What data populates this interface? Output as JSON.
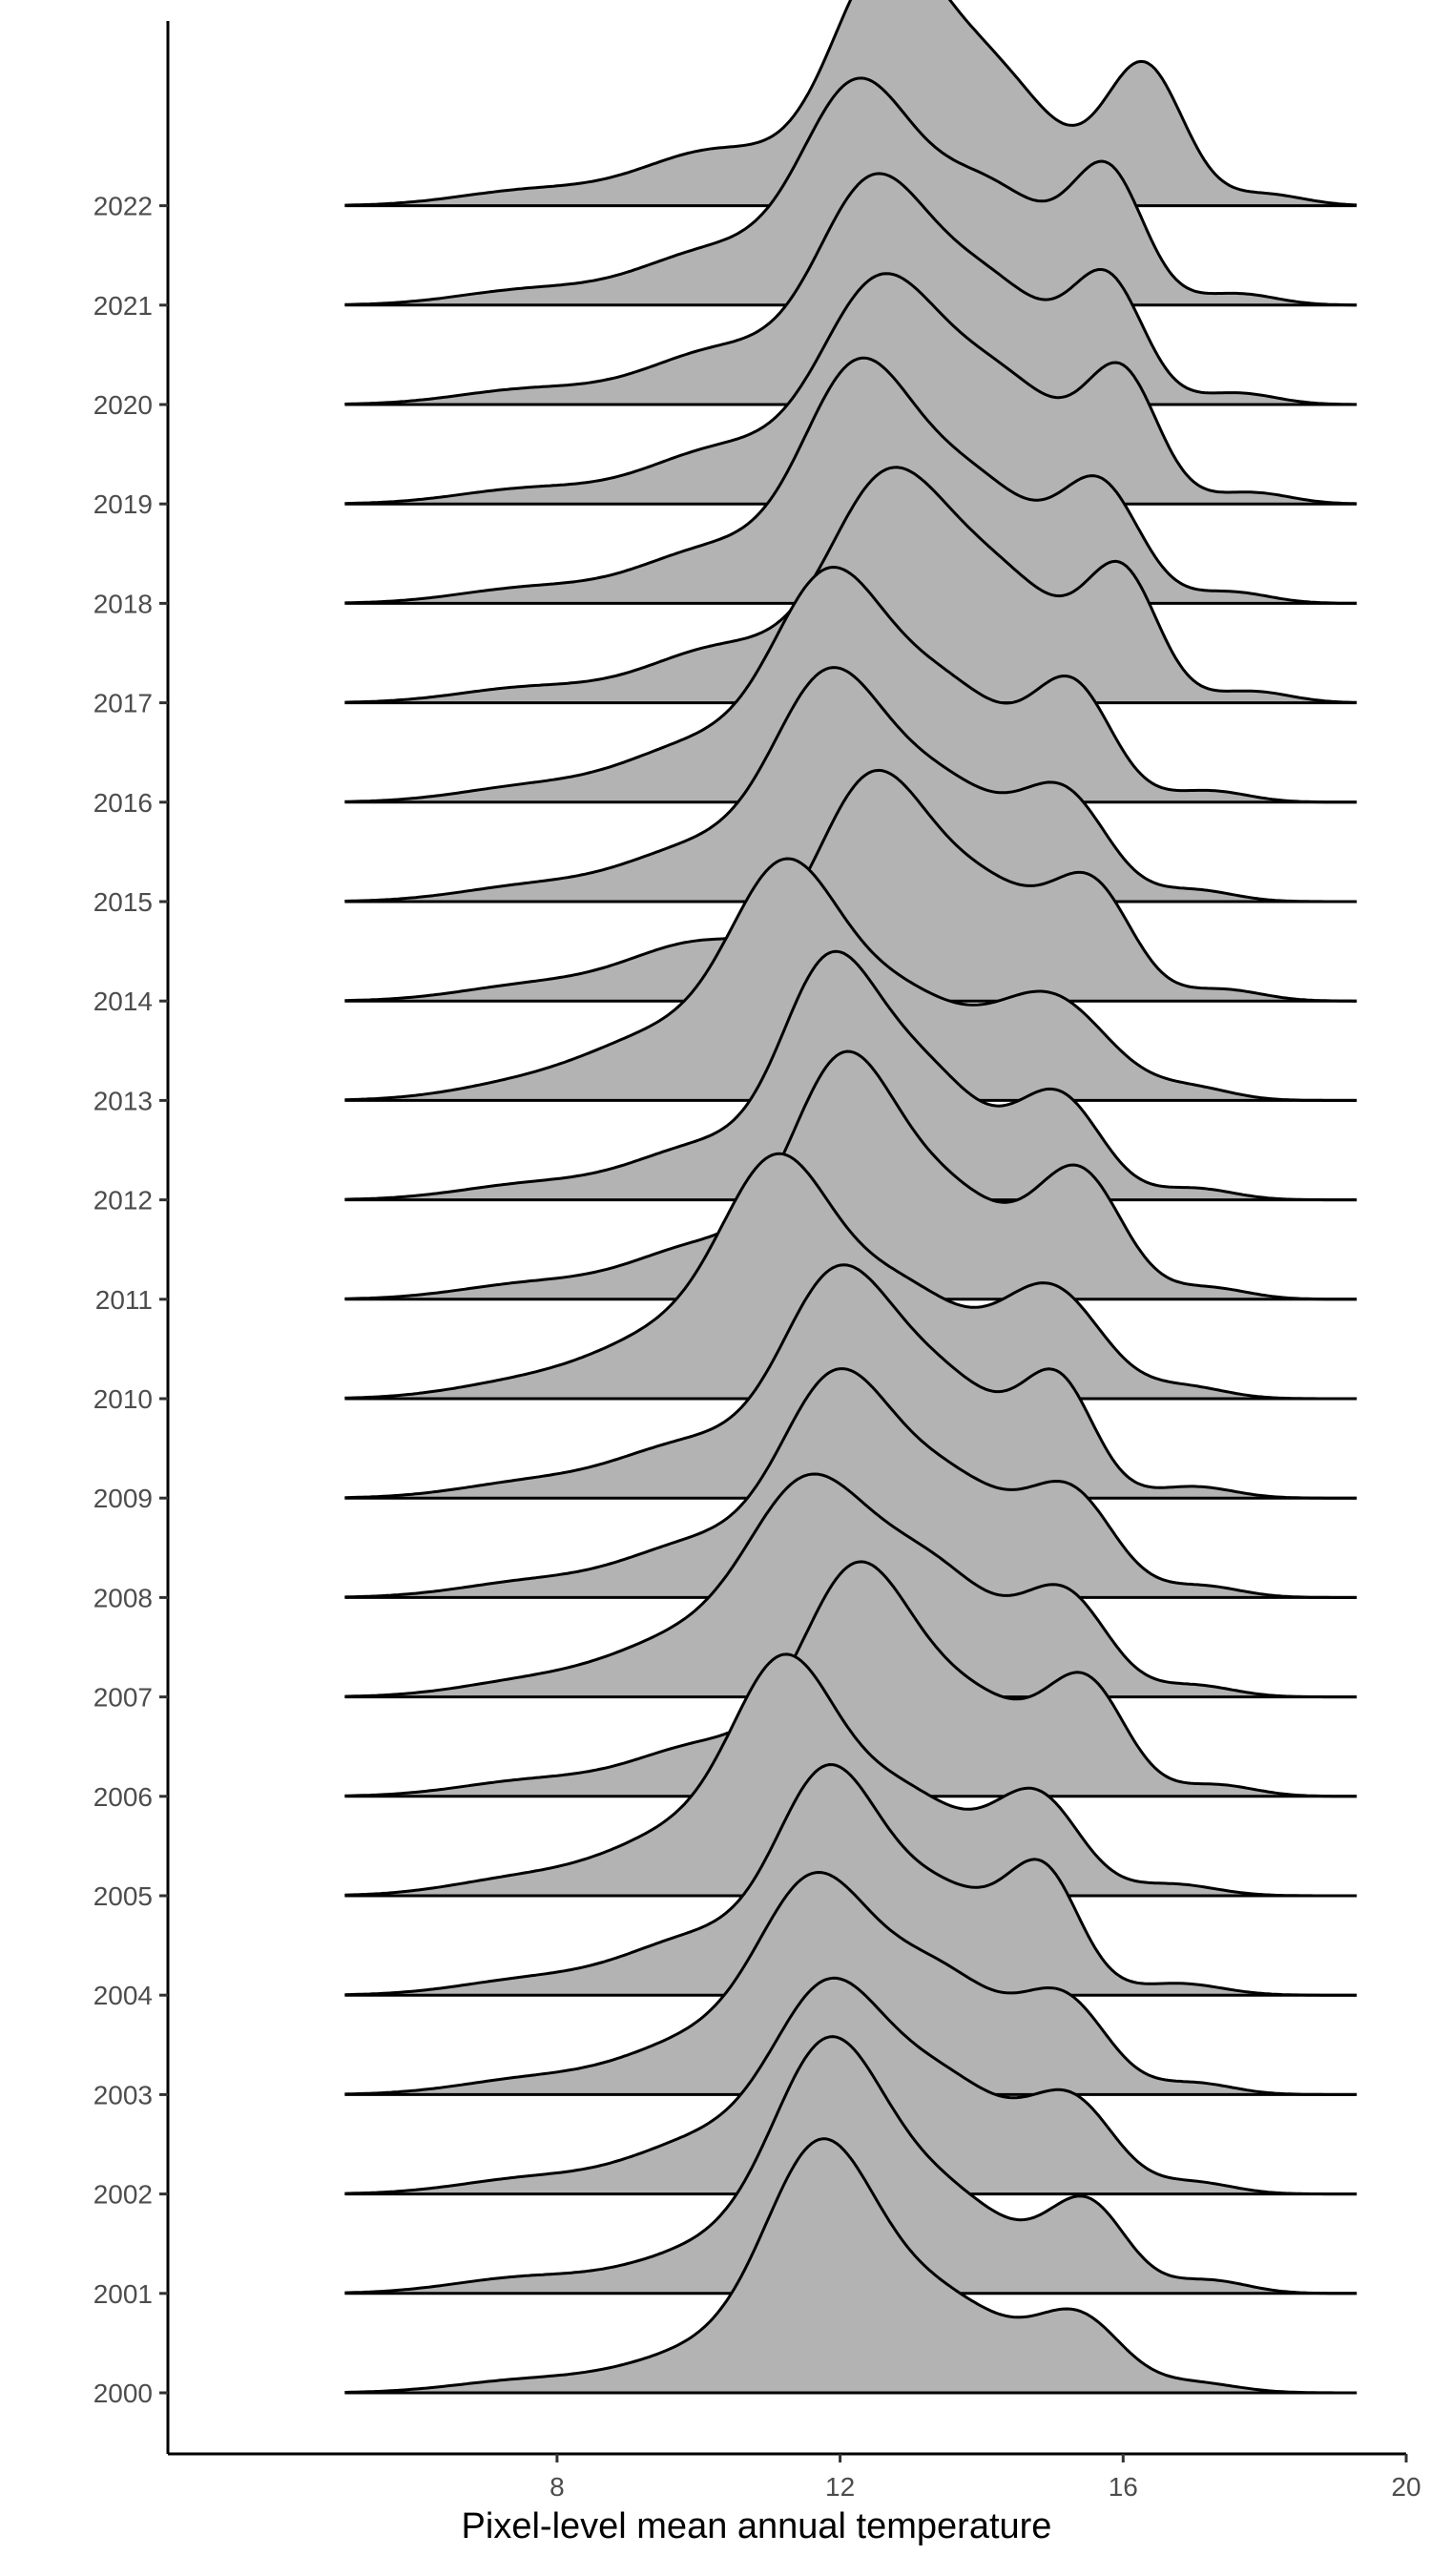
{
  "chart_data": {
    "type": "ridgeline",
    "xlabel": "Pixel-level mean annual temperature",
    "ylabel": "",
    "xlim": [
      2.5,
      20
    ],
    "x_ticks": [
      8,
      12,
      16,
      20
    ],
    "x_range": [
      5,
      19.3
    ],
    "ridge_scale_rows": 2.6,
    "grid": false,
    "fill_color": "#b3b3b3",
    "line_color": "#000000",
    "series": [
      {
        "name": "2000",
        "peaks": [
          [
            7.5,
            1.0,
            0.035
          ],
          [
            10.3,
            1.2,
            0.14
          ],
          [
            11.7,
            0.75,
            0.6
          ],
          [
            13.3,
            1.1,
            0.3
          ],
          [
            15.4,
            0.6,
            0.2
          ],
          [
            17.0,
            0.6,
            0.03
          ]
        ]
      },
      {
        "name": "2001",
        "peaks": [
          [
            7.5,
            1.0,
            0.045
          ],
          [
            10.4,
            1.2,
            0.15
          ],
          [
            11.8,
            0.75,
            0.58
          ],
          [
            13.3,
            1.1,
            0.32
          ],
          [
            15.5,
            0.55,
            0.25
          ],
          [
            17.2,
            0.55,
            0.04
          ]
        ]
      },
      {
        "name": "2002",
        "peaks": [
          [
            7.6,
            1.0,
            0.045
          ],
          [
            10.2,
            1.1,
            0.17
          ],
          [
            11.8,
            0.75,
            0.5
          ],
          [
            13.4,
            1.0,
            0.35
          ],
          [
            15.3,
            0.6,
            0.25
          ],
          [
            17.0,
            0.55,
            0.035
          ]
        ]
      },
      {
        "name": "2003",
        "peaks": [
          [
            7.6,
            1.0,
            0.045
          ],
          [
            10.1,
            1.1,
            0.17
          ],
          [
            11.6,
            0.75,
            0.52
          ],
          [
            13.3,
            1.0,
            0.38
          ],
          [
            15.2,
            0.6,
            0.25
          ],
          [
            17.0,
            0.55,
            0.035
          ]
        ]
      },
      {
        "name": "2004",
        "peaks": [
          [
            7.6,
            1.0,
            0.045
          ],
          [
            10.1,
            1.1,
            0.18
          ],
          [
            11.8,
            0.7,
            0.56
          ],
          [
            13.4,
            1.0,
            0.32
          ],
          [
            14.9,
            0.5,
            0.3
          ],
          [
            16.8,
            0.6,
            0.035
          ]
        ]
      },
      {
        "name": "2005",
        "peaks": [
          [
            7.5,
            1.0,
            0.05
          ],
          [
            9.9,
            1.1,
            0.2
          ],
          [
            11.2,
            0.7,
            0.55
          ],
          [
            12.8,
            1.0,
            0.32
          ],
          [
            14.8,
            0.6,
            0.28
          ],
          [
            16.7,
            0.6,
            0.035
          ]
        ]
      },
      {
        "name": "2006",
        "peaks": [
          [
            7.6,
            1.0,
            0.045
          ],
          [
            10.2,
            1.1,
            0.16
          ],
          [
            12.2,
            0.75,
            0.6
          ],
          [
            13.8,
            1.0,
            0.3
          ],
          [
            15.5,
            0.55,
            0.3
          ],
          [
            17.3,
            0.55,
            0.035
          ]
        ]
      },
      {
        "name": "2007",
        "peaks": [
          [
            7.6,
            1.0,
            0.045
          ],
          [
            9.9,
            1.1,
            0.18
          ],
          [
            11.5,
            0.8,
            0.52
          ],
          [
            13.2,
            1.0,
            0.4
          ],
          [
            15.2,
            0.6,
            0.28
          ],
          [
            17.0,
            0.55,
            0.035
          ]
        ]
      },
      {
        "name": "2008",
        "peaks": [
          [
            7.6,
            1.0,
            0.045
          ],
          [
            10.1,
            1.1,
            0.17
          ],
          [
            11.9,
            0.75,
            0.55
          ],
          [
            13.5,
            1.0,
            0.36
          ],
          [
            15.3,
            0.6,
            0.27
          ],
          [
            17.1,
            0.55,
            0.035
          ]
        ]
      },
      {
        "name": "2009",
        "peaks": [
          [
            7.6,
            1.0,
            0.045
          ],
          [
            10.0,
            1.1,
            0.17
          ],
          [
            11.9,
            0.75,
            0.55
          ],
          [
            13.4,
            1.0,
            0.36
          ],
          [
            15.1,
            0.5,
            0.3
          ],
          [
            17.0,
            0.55,
            0.035
          ]
        ]
      },
      {
        "name": "2010",
        "peaks": [
          [
            7.5,
            1.0,
            0.045
          ],
          [
            9.7,
            1.1,
            0.2
          ],
          [
            11.1,
            0.75,
            0.58
          ],
          [
            12.8,
            1.0,
            0.34
          ],
          [
            15.0,
            0.7,
            0.32
          ],
          [
            16.9,
            0.55,
            0.035
          ]
        ]
      },
      {
        "name": "2011",
        "peaks": [
          [
            7.6,
            1.0,
            0.045
          ],
          [
            10.2,
            1.1,
            0.17
          ],
          [
            12.0,
            0.7,
            0.58
          ],
          [
            13.4,
            1.0,
            0.34
          ],
          [
            15.4,
            0.6,
            0.36
          ],
          [
            17.2,
            0.55,
            0.035
          ]
        ]
      },
      {
        "name": "2012",
        "peaks": [
          [
            7.6,
            1.0,
            0.045
          ],
          [
            10.2,
            1.1,
            0.17
          ],
          [
            11.8,
            0.65,
            0.55
          ],
          [
            13.1,
            0.9,
            0.4
          ],
          [
            15.1,
            0.6,
            0.3
          ],
          [
            17.0,
            0.55,
            0.035
          ]
        ]
      },
      {
        "name": "2013",
        "peaks": [
          [
            7.5,
            1.0,
            0.045
          ],
          [
            9.6,
            1.1,
            0.2
          ],
          [
            11.2,
            0.75,
            0.58
          ],
          [
            12.8,
            1.0,
            0.32
          ],
          [
            15.0,
            0.8,
            0.3
          ],
          [
            17.0,
            0.55,
            0.035
          ]
        ]
      },
      {
        "name": "2014",
        "peaks": [
          [
            7.6,
            1.0,
            0.045
          ],
          [
            10.1,
            1.1,
            0.18
          ],
          [
            12.4,
            0.75,
            0.58
          ],
          [
            14.0,
            1.0,
            0.35
          ],
          [
            15.6,
            0.55,
            0.28
          ],
          [
            17.4,
            0.55,
            0.035
          ]
        ]
      },
      {
        "name": "2015",
        "peaks": [
          [
            7.6,
            1.0,
            0.045
          ],
          [
            10.1,
            1.1,
            0.17
          ],
          [
            11.8,
            0.75,
            0.56
          ],
          [
            13.4,
            1.0,
            0.36
          ],
          [
            15.2,
            0.6,
            0.28
          ],
          [
            17.0,
            0.55,
            0.035
          ]
        ]
      },
      {
        "name": "2016",
        "peaks": [
          [
            7.6,
            1.0,
            0.045
          ],
          [
            10.1,
            1.1,
            0.18
          ],
          [
            11.8,
            0.75,
            0.56
          ],
          [
            13.4,
            1.0,
            0.36
          ],
          [
            15.3,
            0.55,
            0.32
          ],
          [
            17.2,
            0.55,
            0.035
          ]
        ]
      },
      {
        "name": "2017",
        "peaks": [
          [
            7.6,
            1.0,
            0.045
          ],
          [
            10.4,
            1.1,
            0.17
          ],
          [
            12.6,
            0.8,
            0.58
          ],
          [
            14.2,
            1.0,
            0.38
          ],
          [
            16.0,
            0.5,
            0.35
          ],
          [
            17.8,
            0.55,
            0.035
          ]
        ]
      },
      {
        "name": "2018",
        "peaks": [
          [
            7.6,
            1.0,
            0.045
          ],
          [
            10.3,
            1.1,
            0.17
          ],
          [
            12.2,
            0.75,
            0.6
          ],
          [
            13.8,
            1.0,
            0.38
          ],
          [
            15.7,
            0.55,
            0.32
          ],
          [
            17.5,
            0.55,
            0.035
          ]
        ]
      },
      {
        "name": "2019",
        "peaks": [
          [
            7.6,
            1.0,
            0.045
          ],
          [
            10.4,
            1.1,
            0.17
          ],
          [
            12.5,
            0.8,
            0.58
          ],
          [
            14.2,
            1.0,
            0.38
          ],
          [
            16.0,
            0.5,
            0.35
          ],
          [
            17.8,
            0.55,
            0.035
          ]
        ]
      },
      {
        "name": "2020",
        "peaks": [
          [
            7.6,
            1.0,
            0.045
          ],
          [
            10.4,
            1.1,
            0.17
          ],
          [
            12.4,
            0.75,
            0.56
          ],
          [
            14.0,
            1.0,
            0.38
          ],
          [
            15.8,
            0.5,
            0.33
          ],
          [
            17.6,
            0.55,
            0.035
          ]
        ]
      },
      {
        "name": "2021",
        "peaks": [
          [
            7.6,
            1.0,
            0.045
          ],
          [
            10.3,
            1.1,
            0.17
          ],
          [
            12.2,
            0.75,
            0.58
          ],
          [
            14.0,
            1.0,
            0.37
          ],
          [
            15.8,
            0.5,
            0.36
          ],
          [
            17.6,
            0.55,
            0.035
          ]
        ]
      },
      {
        "name": "2022",
        "peaks": [
          [
            7.6,
            1.0,
            0.045
          ],
          [
            10.3,
            1.1,
            0.17
          ],
          [
            12.6,
            0.75,
            0.66
          ],
          [
            14.1,
            0.9,
            0.4
          ],
          [
            16.3,
            0.55,
            0.42
          ],
          [
            18.0,
            0.55,
            0.035
          ]
        ]
      }
    ]
  }
}
